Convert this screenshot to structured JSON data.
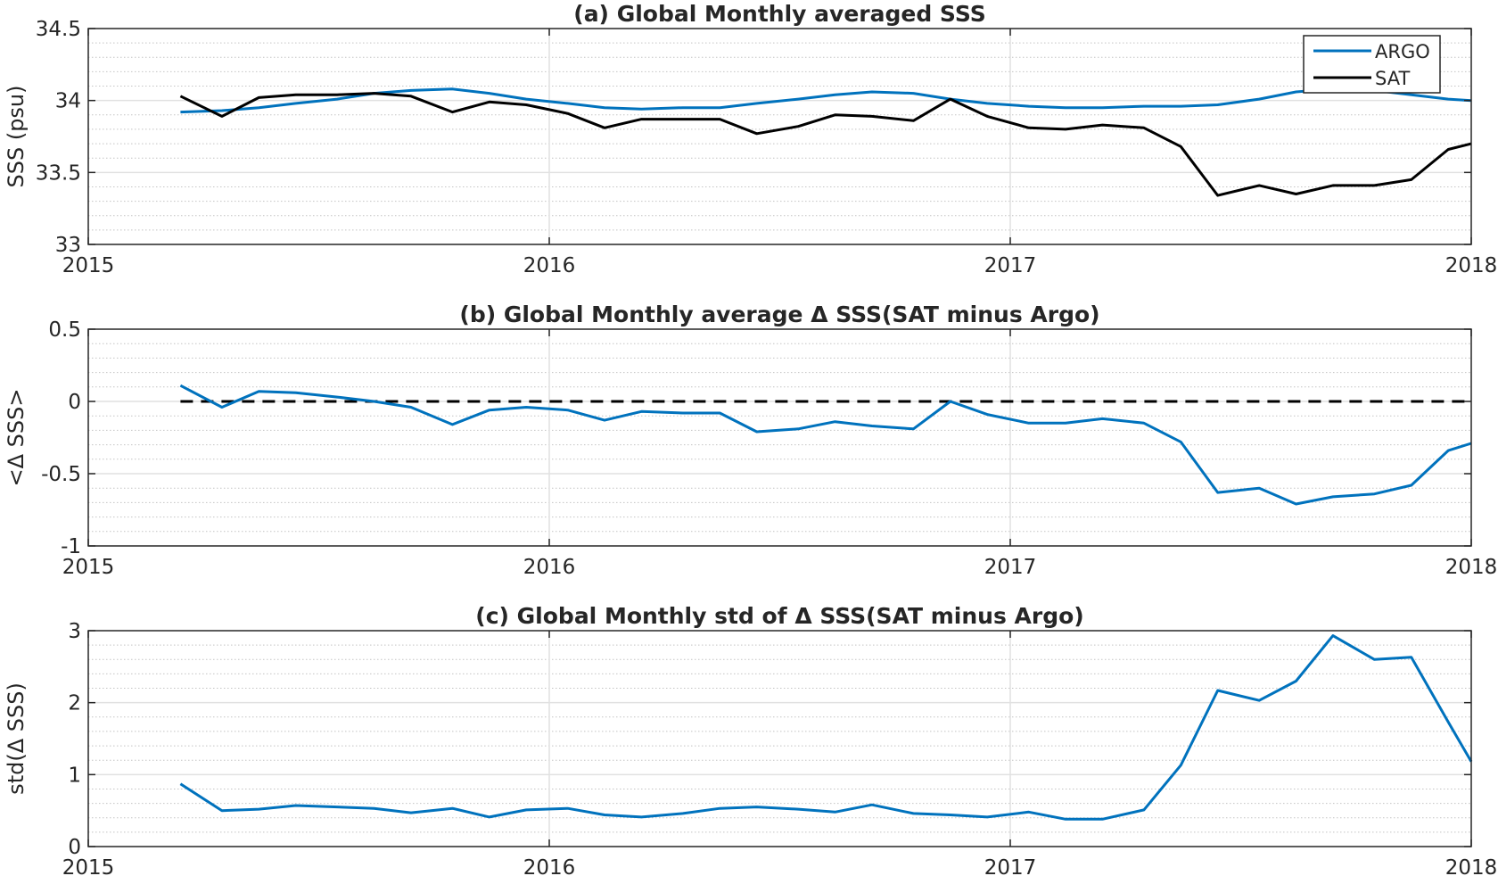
{
  "chart_data": [
    {
      "type": "line",
      "title": "(a) Global Monthly averaged SSS",
      "xlabel": "",
      "ylabel": "SSS (psu)",
      "xlim": [
        2015,
        2018
      ],
      "ylim": [
        33,
        34.5
      ],
      "xticks": [
        2015,
        2016,
        2017,
        2018
      ],
      "xtick_labels": [
        "2015",
        "2016",
        "2017",
        "2018"
      ],
      "yticks": [
        33,
        33.5,
        34,
        34.5
      ],
      "ytick_labels": [
        "33",
        "33.5",
        "34",
        "34.5"
      ],
      "grid": true,
      "legend": "top-right",
      "x": [
        2015.2,
        2015.29,
        2015.37,
        2015.45,
        2015.54,
        2015.62,
        2015.7,
        2015.79,
        2015.87,
        2015.95,
        2016.04,
        2016.12,
        2016.2,
        2016.29,
        2016.37,
        2016.45,
        2016.54,
        2016.62,
        2016.7,
        2016.79,
        2016.87,
        2016.95,
        2017.04,
        2017.12,
        2017.2,
        2017.29,
        2017.37,
        2017.45,
        2017.54,
        2017.62,
        2017.7,
        2017.79,
        2017.87,
        2017.95,
        2018.0
      ],
      "series": [
        {
          "name": "ARGO",
          "color": "#0072BD",
          "values": [
            33.92,
            33.93,
            33.95,
            33.98,
            34.01,
            34.05,
            34.07,
            34.08,
            34.05,
            34.01,
            33.98,
            33.95,
            33.94,
            33.95,
            33.95,
            33.98,
            34.01,
            34.04,
            34.06,
            34.05,
            34.01,
            33.98,
            33.96,
            33.95,
            33.95,
            33.96,
            33.96,
            33.97,
            34.01,
            34.06,
            34.08,
            34.07,
            34.04,
            34.01,
            34.0
          ]
        },
        {
          "name": "SAT",
          "color": "#000000",
          "values": [
            34.03,
            33.89,
            34.02,
            34.04,
            34.04,
            34.05,
            34.03,
            33.92,
            33.99,
            33.97,
            33.91,
            33.81,
            33.87,
            33.87,
            33.87,
            33.77,
            33.82,
            33.9,
            33.89,
            33.86,
            34.01,
            33.89,
            33.81,
            33.8,
            33.83,
            33.81,
            33.68,
            33.34,
            33.41,
            33.35,
            33.41,
            33.41,
            33.45,
            33.66,
            33.7
          ]
        }
      ]
    },
    {
      "type": "line",
      "title": "(b) Global Monthly average Δ SSS(SAT minus Argo)",
      "xlabel": "",
      "ylabel": "<Δ SSS>",
      "xlim": [
        2015,
        2018
      ],
      "ylim": [
        -1,
        0.5
      ],
      "xticks": [
        2015,
        2016,
        2017,
        2018
      ],
      "xtick_labels": [
        "2015",
        "2016",
        "2017",
        "2018"
      ],
      "yticks": [
        -1,
        -0.5,
        0,
        0.5
      ],
      "ytick_labels": [
        "-1",
        "-0.5",
        "0",
        "0.5"
      ],
      "grid": true,
      "reference_line": {
        "y": 0,
        "style": "dashed",
        "color": "#000000",
        "x_start": 2015.2,
        "x_end": 2018.0
      },
      "x": [
        2015.2,
        2015.29,
        2015.37,
        2015.45,
        2015.54,
        2015.62,
        2015.7,
        2015.79,
        2015.87,
        2015.95,
        2016.04,
        2016.12,
        2016.2,
        2016.29,
        2016.37,
        2016.45,
        2016.54,
        2016.62,
        2016.7,
        2016.79,
        2016.87,
        2016.95,
        2017.04,
        2017.12,
        2017.2,
        2017.29,
        2017.37,
        2017.45,
        2017.54,
        2017.62,
        2017.7,
        2017.79,
        2017.87,
        2017.95,
        2018.0
      ],
      "series": [
        {
          "color": "#0072BD",
          "values": [
            0.11,
            -0.04,
            0.07,
            0.06,
            0.03,
            0.0,
            -0.04,
            -0.16,
            -0.06,
            -0.04,
            -0.06,
            -0.13,
            -0.07,
            -0.08,
            -0.08,
            -0.21,
            -0.19,
            -0.14,
            -0.17,
            -0.19,
            0.0,
            -0.09,
            -0.15,
            -0.15,
            -0.12,
            -0.15,
            -0.28,
            -0.63,
            -0.6,
            -0.71,
            -0.66,
            -0.64,
            -0.58,
            -0.34,
            -0.29
          ]
        }
      ]
    },
    {
      "type": "line",
      "title": "(c) Global Monthly std of Δ SSS(SAT minus Argo)",
      "xlabel": "",
      "ylabel": "std(Δ SSS)",
      "xlim": [
        2015,
        2018
      ],
      "ylim": [
        0,
        3
      ],
      "xticks": [
        2015,
        2016,
        2017,
        2018
      ],
      "xtick_labels": [
        "2015",
        "2016",
        "2017",
        "2018"
      ],
      "yticks": [
        0,
        1,
        2,
        3
      ],
      "ytick_labels": [
        "0",
        "1",
        "2",
        "3"
      ],
      "grid": true,
      "x": [
        2015.2,
        2015.29,
        2015.37,
        2015.45,
        2015.54,
        2015.62,
        2015.7,
        2015.79,
        2015.87,
        2015.95,
        2016.04,
        2016.12,
        2016.2,
        2016.29,
        2016.37,
        2016.45,
        2016.54,
        2016.62,
        2016.7,
        2016.79,
        2016.87,
        2016.95,
        2017.04,
        2017.12,
        2017.2,
        2017.29,
        2017.37,
        2017.45,
        2017.54,
        2017.62,
        2017.7,
        2017.79,
        2017.87,
        2017.95,
        2018.0
      ],
      "series": [
        {
          "color": "#0072BD",
          "values": [
            0.87,
            0.5,
            0.52,
            0.57,
            0.55,
            0.53,
            0.47,
            0.53,
            0.41,
            0.51,
            0.53,
            0.44,
            0.41,
            0.46,
            0.53,
            0.55,
            0.52,
            0.48,
            0.58,
            0.46,
            0.44,
            0.41,
            0.48,
            0.38,
            0.38,
            0.51,
            1.13,
            2.17,
            2.03,
            2.3,
            2.93,
            2.6,
            2.63,
            1.73,
            1.18
          ]
        }
      ]
    }
  ]
}
